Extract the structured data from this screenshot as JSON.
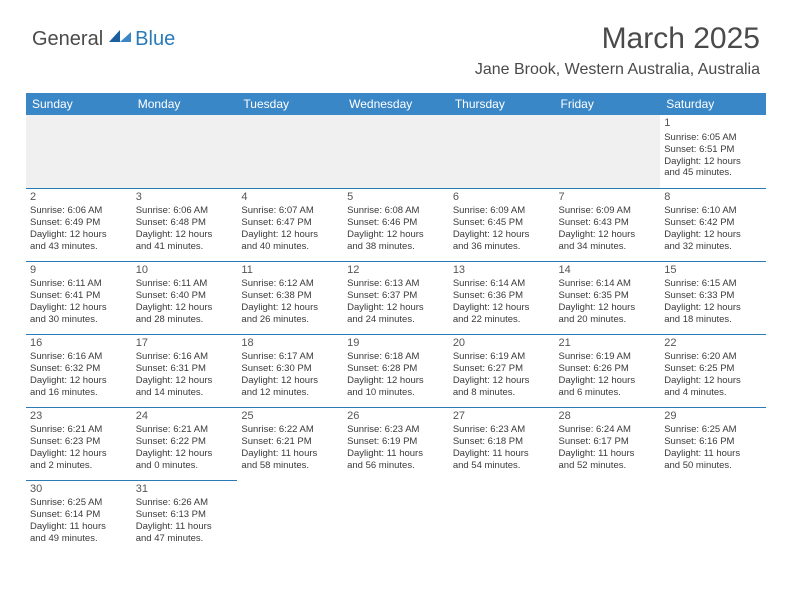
{
  "logo": {
    "general": "General",
    "blue": "Blue"
  },
  "title": {
    "month": "March 2025",
    "location": "Jane Brook, Western Australia, Australia"
  },
  "colors": {
    "header_bg": "#3a87c7",
    "accent": "#2a7ab8",
    "text": "#3a3a3a",
    "muted_bg": "#f0f0f0"
  },
  "dayHeaders": [
    "Sunday",
    "Monday",
    "Tuesday",
    "Wednesday",
    "Thursday",
    "Friday",
    "Saturday"
  ],
  "weeks": [
    [
      null,
      null,
      null,
      null,
      null,
      null,
      {
        "n": "1",
        "sr": "Sunrise: 6:05 AM",
        "ss": "Sunset: 6:51 PM",
        "d1": "Daylight: 12 hours",
        "d2": "and 45 minutes."
      }
    ],
    [
      {
        "n": "2",
        "sr": "Sunrise: 6:06 AM",
        "ss": "Sunset: 6:49 PM",
        "d1": "Daylight: 12 hours",
        "d2": "and 43 minutes."
      },
      {
        "n": "3",
        "sr": "Sunrise: 6:06 AM",
        "ss": "Sunset: 6:48 PM",
        "d1": "Daylight: 12 hours",
        "d2": "and 41 minutes."
      },
      {
        "n": "4",
        "sr": "Sunrise: 6:07 AM",
        "ss": "Sunset: 6:47 PM",
        "d1": "Daylight: 12 hours",
        "d2": "and 40 minutes."
      },
      {
        "n": "5",
        "sr": "Sunrise: 6:08 AM",
        "ss": "Sunset: 6:46 PM",
        "d1": "Daylight: 12 hours",
        "d2": "and 38 minutes."
      },
      {
        "n": "6",
        "sr": "Sunrise: 6:09 AM",
        "ss": "Sunset: 6:45 PM",
        "d1": "Daylight: 12 hours",
        "d2": "and 36 minutes."
      },
      {
        "n": "7",
        "sr": "Sunrise: 6:09 AM",
        "ss": "Sunset: 6:43 PM",
        "d1": "Daylight: 12 hours",
        "d2": "and 34 minutes."
      },
      {
        "n": "8",
        "sr": "Sunrise: 6:10 AM",
        "ss": "Sunset: 6:42 PM",
        "d1": "Daylight: 12 hours",
        "d2": "and 32 minutes."
      }
    ],
    [
      {
        "n": "9",
        "sr": "Sunrise: 6:11 AM",
        "ss": "Sunset: 6:41 PM",
        "d1": "Daylight: 12 hours",
        "d2": "and 30 minutes."
      },
      {
        "n": "10",
        "sr": "Sunrise: 6:11 AM",
        "ss": "Sunset: 6:40 PM",
        "d1": "Daylight: 12 hours",
        "d2": "and 28 minutes."
      },
      {
        "n": "11",
        "sr": "Sunrise: 6:12 AM",
        "ss": "Sunset: 6:38 PM",
        "d1": "Daylight: 12 hours",
        "d2": "and 26 minutes."
      },
      {
        "n": "12",
        "sr": "Sunrise: 6:13 AM",
        "ss": "Sunset: 6:37 PM",
        "d1": "Daylight: 12 hours",
        "d2": "and 24 minutes."
      },
      {
        "n": "13",
        "sr": "Sunrise: 6:14 AM",
        "ss": "Sunset: 6:36 PM",
        "d1": "Daylight: 12 hours",
        "d2": "and 22 minutes."
      },
      {
        "n": "14",
        "sr": "Sunrise: 6:14 AM",
        "ss": "Sunset: 6:35 PM",
        "d1": "Daylight: 12 hours",
        "d2": "and 20 minutes."
      },
      {
        "n": "15",
        "sr": "Sunrise: 6:15 AM",
        "ss": "Sunset: 6:33 PM",
        "d1": "Daylight: 12 hours",
        "d2": "and 18 minutes."
      }
    ],
    [
      {
        "n": "16",
        "sr": "Sunrise: 6:16 AM",
        "ss": "Sunset: 6:32 PM",
        "d1": "Daylight: 12 hours",
        "d2": "and 16 minutes."
      },
      {
        "n": "17",
        "sr": "Sunrise: 6:16 AM",
        "ss": "Sunset: 6:31 PM",
        "d1": "Daylight: 12 hours",
        "d2": "and 14 minutes."
      },
      {
        "n": "18",
        "sr": "Sunrise: 6:17 AM",
        "ss": "Sunset: 6:30 PM",
        "d1": "Daylight: 12 hours",
        "d2": "and 12 minutes."
      },
      {
        "n": "19",
        "sr": "Sunrise: 6:18 AM",
        "ss": "Sunset: 6:28 PM",
        "d1": "Daylight: 12 hours",
        "d2": "and 10 minutes."
      },
      {
        "n": "20",
        "sr": "Sunrise: 6:19 AM",
        "ss": "Sunset: 6:27 PM",
        "d1": "Daylight: 12 hours",
        "d2": "and 8 minutes."
      },
      {
        "n": "21",
        "sr": "Sunrise: 6:19 AM",
        "ss": "Sunset: 6:26 PM",
        "d1": "Daylight: 12 hours",
        "d2": "and 6 minutes."
      },
      {
        "n": "22",
        "sr": "Sunrise: 6:20 AM",
        "ss": "Sunset: 6:25 PM",
        "d1": "Daylight: 12 hours",
        "d2": "and 4 minutes."
      }
    ],
    [
      {
        "n": "23",
        "sr": "Sunrise: 6:21 AM",
        "ss": "Sunset: 6:23 PM",
        "d1": "Daylight: 12 hours",
        "d2": "and 2 minutes."
      },
      {
        "n": "24",
        "sr": "Sunrise: 6:21 AM",
        "ss": "Sunset: 6:22 PM",
        "d1": "Daylight: 12 hours",
        "d2": "and 0 minutes."
      },
      {
        "n": "25",
        "sr": "Sunrise: 6:22 AM",
        "ss": "Sunset: 6:21 PM",
        "d1": "Daylight: 11 hours",
        "d2": "and 58 minutes."
      },
      {
        "n": "26",
        "sr": "Sunrise: 6:23 AM",
        "ss": "Sunset: 6:19 PM",
        "d1": "Daylight: 11 hours",
        "d2": "and 56 minutes."
      },
      {
        "n": "27",
        "sr": "Sunrise: 6:23 AM",
        "ss": "Sunset: 6:18 PM",
        "d1": "Daylight: 11 hours",
        "d2": "and 54 minutes."
      },
      {
        "n": "28",
        "sr": "Sunrise: 6:24 AM",
        "ss": "Sunset: 6:17 PM",
        "d1": "Daylight: 11 hours",
        "d2": "and 52 minutes."
      },
      {
        "n": "29",
        "sr": "Sunrise: 6:25 AM",
        "ss": "Sunset: 6:16 PM",
        "d1": "Daylight: 11 hours",
        "d2": "and 50 minutes."
      }
    ],
    [
      {
        "n": "30",
        "sr": "Sunrise: 6:25 AM",
        "ss": "Sunset: 6:14 PM",
        "d1": "Daylight: 11 hours",
        "d2": "and 49 minutes."
      },
      {
        "n": "31",
        "sr": "Sunrise: 6:26 AM",
        "ss": "Sunset: 6:13 PM",
        "d1": "Daylight: 11 hours",
        "d2": "and 47 minutes."
      },
      null,
      null,
      null,
      null,
      null
    ]
  ]
}
